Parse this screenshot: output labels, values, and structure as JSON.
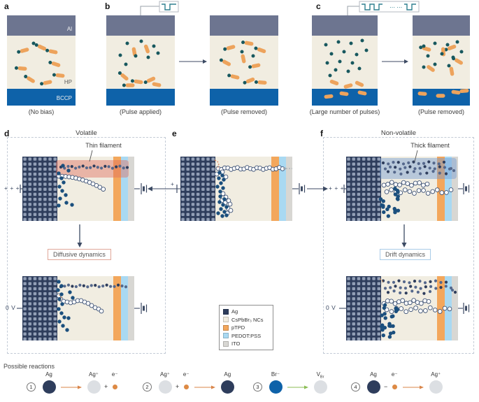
{
  "panels_top": {
    "a": {
      "label": "a",
      "caption": "(No bias)",
      "layers": {
        "top": "Al",
        "middle": "HP",
        "bottom": "BCCP"
      }
    },
    "b": {
      "label": "b",
      "caption_applied": "(Pulse applied)",
      "caption_removed": "(Pulse removed)"
    },
    "c": {
      "label": "c",
      "caption_applied": "(Large number of pulses)",
      "caption_removed": "(Pulse removed)"
    }
  },
  "panels_mid": {
    "d": {
      "label": "d",
      "title": "Volatile",
      "filament_label": "Thin filament",
      "bias_pulse": "+ + +",
      "bias_zero": "0 V",
      "dynamics": "Diffusive dynamics"
    },
    "e": {
      "label": "e",
      "bias_pulse": "+"
    },
    "f": {
      "label": "f",
      "title": "Non-volatile",
      "filament_label": "Thick filament",
      "bias_pulse": "+ + +",
      "bias_zero": "0 V",
      "dynamics": "Drift dynamics"
    }
  },
  "legend": {
    "items": [
      {
        "label": "Ag",
        "color": "#2e3d5c"
      },
      {
        "label": "CsPbBr₃ NCs",
        "color": "#f1ede1"
      },
      {
        "label": "pTPD",
        "color": "#f3a75c"
      },
      {
        "label": "PEDOT:PSS",
        "color": "#a9d9f2"
      },
      {
        "label": "ITO",
        "color": "#d8d7d3"
      }
    ]
  },
  "reactions": {
    "title": "Possible reactions",
    "r1": {
      "num": "1",
      "reactant": "Ag",
      "product1": "Ag⁺",
      "op": "+",
      "product2": "e⁻"
    },
    "r2": {
      "num": "2",
      "reactant1": "Ag⁺",
      "op": "+",
      "reactant2": "e⁻",
      "product": "Ag"
    },
    "r3": {
      "num": "3",
      "reactant": "Br⁻",
      "product_main": "V",
      "product_sub": "Br"
    },
    "r4": {
      "num": "4",
      "reactant1": "Ag",
      "op": "−",
      "reactant2": "e⁻",
      "product": "Ag⁺"
    }
  }
}
